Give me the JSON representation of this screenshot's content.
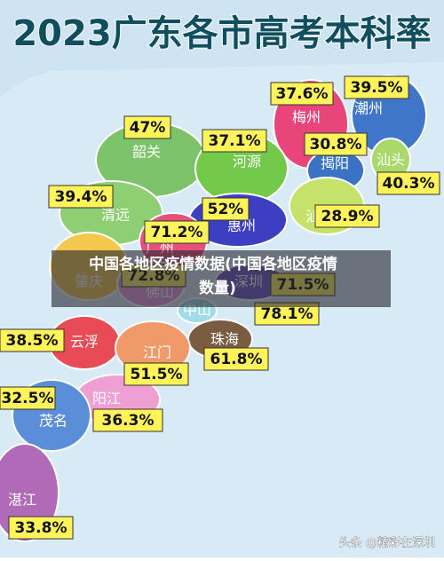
{
  "title": "2023广东各市高考本科率",
  "regions": [
    {
      "name": "梅州",
      "rate": "37.6%"
    },
    {
      "name": "潮州",
      "rate": "39.5%"
    },
    {
      "name": "揭阳",
      "rate": "30.8%"
    },
    {
      "name": "汕头",
      "rate": "40.3%"
    },
    {
      "name": "韶关",
      "rate": "47%"
    },
    {
      "name": "河源",
      "rate": "37.1%"
    },
    {
      "name": "清远",
      "rate": "39.4%"
    },
    {
      "name": "惠州",
      "rate": "52%"
    },
    {
      "name": "汕尾",
      "rate": "28.9%"
    },
    {
      "name": "广州",
      "rate": "71.2%"
    },
    {
      "name": "肇庆"
    },
    {
      "name": "佛山",
      "rate": "72.8%"
    },
    {
      "name": "深圳",
      "rate": "71.5%"
    },
    {
      "name": "中山",
      "rate": "78.1%"
    },
    {
      "name": "珠海",
      "rate": "61.8%"
    },
    {
      "name": "云浮",
      "rate": "38.5%"
    },
    {
      "name": "江门",
      "rate": "51.5%"
    },
    {
      "name": "阳江",
      "rate": "36.3%"
    },
    {
      "name": "茂名",
      "rate": "32.5%"
    },
    {
      "name": "湛江",
      "rate": "33.8%"
    }
  ],
  "overlay": {
    "line1": "中国各地区疫情数据(中国各地区疫情",
    "line2": "数量)"
  },
  "watermark": "头条 @精彩在深圳"
}
